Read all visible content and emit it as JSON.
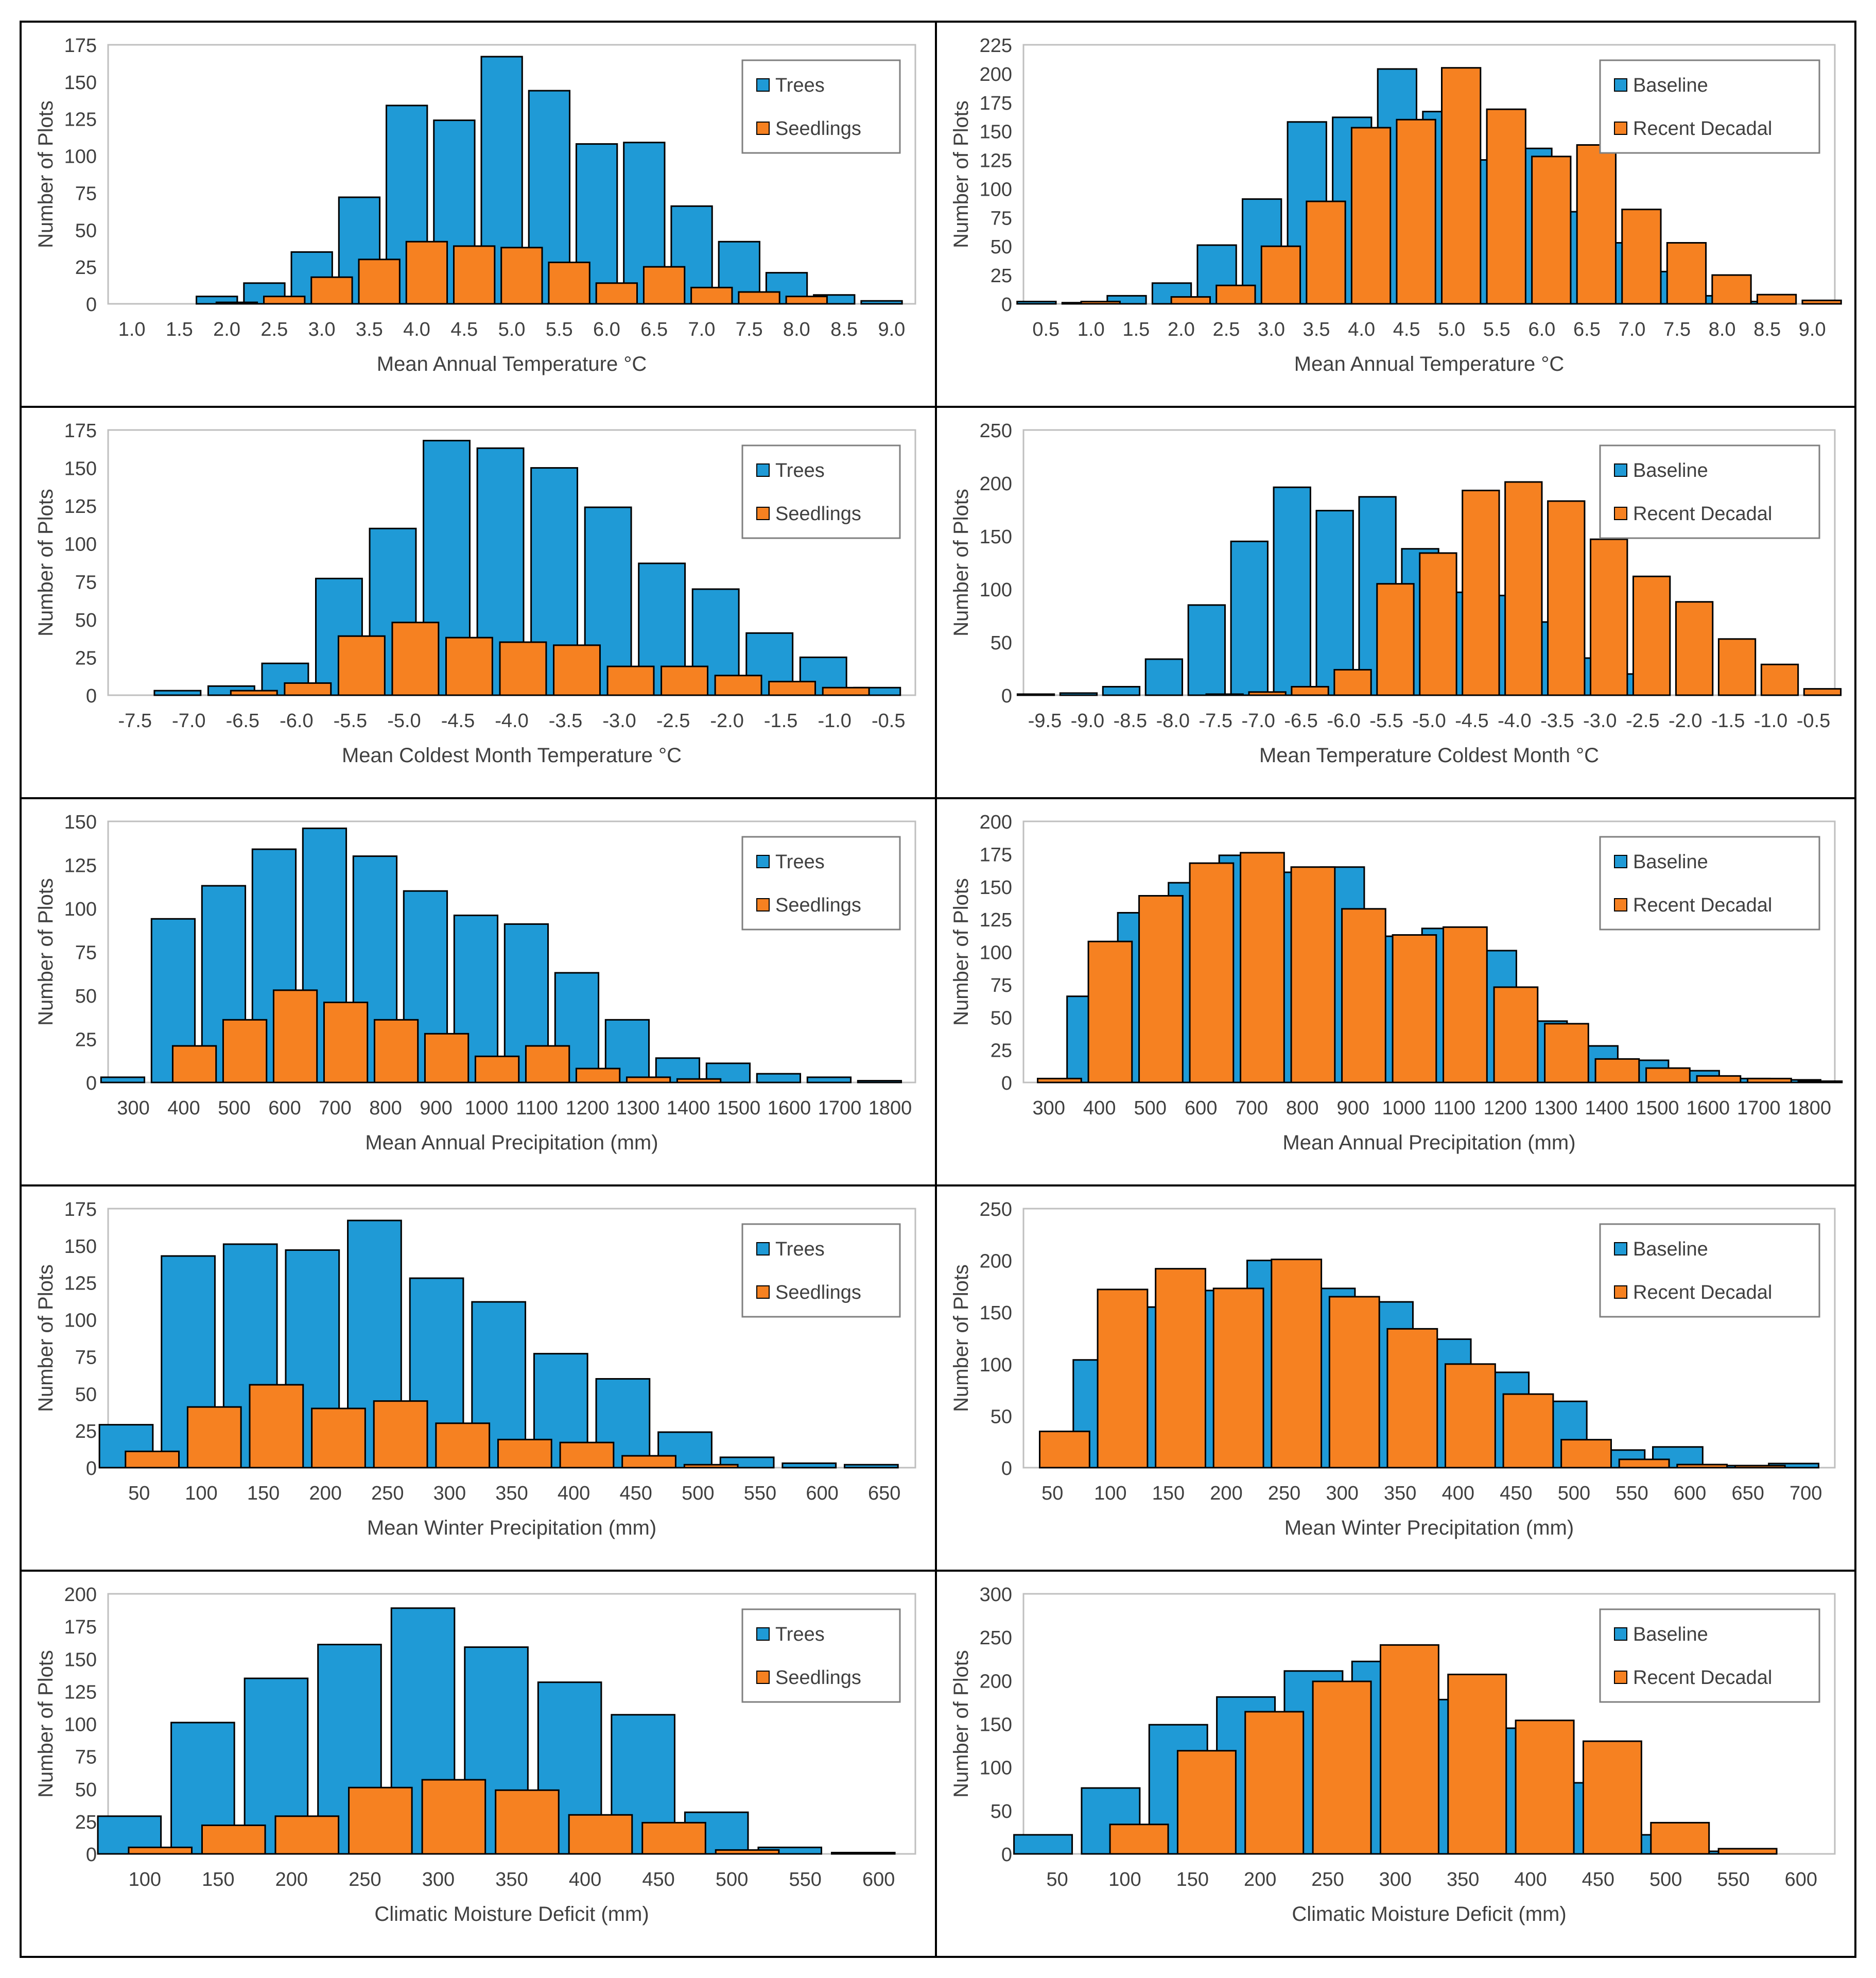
{
  "y_axis_label": "Number of Plots",
  "colors": {
    "trees": "#1f9ad6",
    "seedlings": "#f68121",
    "baseline": "#1f9ad6",
    "recent": "#f68121",
    "border": "#000000",
    "grid": "#d9d9d9",
    "text": "#404040"
  },
  "chart_data": [
    {
      "id": "A1",
      "type": "bar",
      "overlap": "offset",
      "xlabel": "Mean Annual Temperature °C",
      "ylim": [
        0,
        175
      ],
      "ystep": 25,
      "legend": "top-right",
      "categories": [
        "1.0",
        "1.5",
        "2.0",
        "2.5",
        "3.0",
        "3.5",
        "4.0",
        "4.5",
        "5.0",
        "5.5",
        "6.0",
        "6.5",
        "7.0",
        "7.5",
        "8.0",
        "8.5",
        "9.0"
      ],
      "series": [
        {
          "name": "Trees",
          "color": "trees",
          "values": [
            0,
            0,
            5,
            14,
            35,
            72,
            134,
            124,
            167,
            144,
            108,
            109,
            66,
            42,
            21,
            6,
            2
          ]
        },
        {
          "name": "Seedlings",
          "color": "seedlings",
          "values": [
            0,
            0,
            1,
            5,
            18,
            30,
            42,
            39,
            38,
            28,
            14,
            25,
            11,
            8,
            5,
            0,
            0
          ]
        }
      ]
    },
    {
      "id": "B1",
      "type": "bar",
      "overlap": "offset",
      "xlabel": "Mean Annual Temperature °C",
      "ylim": [
        0,
        225
      ],
      "ystep": 25,
      "legend": "top-right",
      "categories": [
        "0.5",
        "1.0",
        "1.5",
        "2.0",
        "2.5",
        "3.0",
        "3.5",
        "4.0",
        "4.5",
        "5.0",
        "5.5",
        "6.0",
        "6.5",
        "7.0",
        "7.5",
        "8.0",
        "8.5",
        "9.0"
      ],
      "series": [
        {
          "name": "Baseline",
          "color": "baseline",
          "values": [
            2,
            1,
            7,
            18,
            51,
            91,
            158,
            162,
            204,
            167,
            125,
            135,
            80,
            53,
            28,
            7,
            2,
            0
          ]
        },
        {
          "name": "Recent Decadal",
          "color": "recent",
          "values": [
            0,
            2,
            0,
            6,
            16,
            50,
            89,
            153,
            160,
            205,
            169,
            128,
            138,
            82,
            53,
            25,
            8,
            3
          ]
        }
      ]
    },
    {
      "id": "A2",
      "type": "bar",
      "overlap": "offset",
      "xlabel": "Mean Coldest Month Temperature °C",
      "ylim": [
        0,
        175
      ],
      "ystep": 25,
      "legend": "top-right",
      "categories": [
        "-7.5",
        "-7.0",
        "-6.5",
        "-6.0",
        "-5.5",
        "-5.0",
        "-4.5",
        "-4.0",
        "-3.5",
        "-3.0",
        "-2.5",
        "-2.0",
        "-1.5",
        "-1.0",
        "-0.5"
      ],
      "series": [
        {
          "name": "Trees",
          "color": "trees",
          "values": [
            0,
            3,
            6,
            21,
            77,
            110,
            168,
            163,
            150,
            124,
            87,
            70,
            41,
            25,
            5
          ]
        },
        {
          "name": "Seedlings",
          "color": "seedlings",
          "values": [
            0,
            0,
            3,
            8,
            39,
            48,
            38,
            35,
            33,
            19,
            19,
            13,
            9,
            5,
            0
          ]
        }
      ]
    },
    {
      "id": "B2",
      "type": "bar",
      "overlap": "offset",
      "xlabel": "Mean Temperature Coldest Month °C",
      "ylim": [
        0,
        250
      ],
      "ystep": 50,
      "legend": "top-right",
      "categories": [
        "-9.5",
        "-9.0",
        "-8.5",
        "-8.0",
        "-7.5",
        "-7.0",
        "-6.5",
        "-6.0",
        "-5.5",
        "-5.0",
        "-4.5",
        "-4.0",
        "-3.5",
        "-3.0",
        "-2.5",
        "-2.0",
        "-1.5",
        "-1.0",
        "-0.5"
      ],
      "series": [
        {
          "name": "Baseline",
          "color": "baseline",
          "values": [
            1,
            2,
            8,
            34,
            85,
            145,
            196,
            174,
            187,
            138,
            97,
            94,
            69,
            35,
            20,
            0,
            0,
            0,
            0
          ]
        },
        {
          "name": "Recent Decadal",
          "color": "recent",
          "values": [
            0,
            0,
            0,
            0,
            1,
            3,
            8,
            24,
            105,
            134,
            193,
            201,
            183,
            147,
            112,
            88,
            53,
            29,
            6
          ]
        }
      ]
    },
    {
      "id": "A3",
      "type": "bar",
      "overlap": "offset",
      "xlabel": "Mean Annual Precipitation (mm)",
      "ylim": [
        0,
        150
      ],
      "ystep": 25,
      "legend": "top-right",
      "categories": [
        "300",
        "400",
        "500",
        "600",
        "700",
        "800",
        "900",
        "1000",
        "1100",
        "1200",
        "1300",
        "1400",
        "1500",
        "1600",
        "1700",
        "1800"
      ],
      "series": [
        {
          "name": "Trees",
          "color": "trees",
          "values": [
            3,
            94,
            113,
            134,
            146,
            130,
            110,
            96,
            91,
            63,
            36,
            14,
            11,
            5,
            3,
            1
          ]
        },
        {
          "name": "Seedlings",
          "color": "seedlings",
          "values": [
            0,
            21,
            36,
            53,
            46,
            36,
            28,
            15,
            21,
            8,
            3,
            2,
            0,
            0,
            0,
            0
          ]
        }
      ]
    },
    {
      "id": "B3",
      "type": "bar",
      "overlap": "offset",
      "xlabel": "Mean Annual Precipitation (mm)",
      "ylim": [
        0,
        200
      ],
      "ystep": 25,
      "legend": "top-right",
      "categories": [
        "300",
        "400",
        "500",
        "600",
        "700",
        "800",
        "900",
        "1000",
        "1100",
        "1200",
        "1300",
        "1400",
        "1500",
        "1600",
        "1700",
        "1800"
      ],
      "series": [
        {
          "name": "Baseline",
          "color": "baseline",
          "values": [
            0,
            66,
            130,
            153,
            174,
            161,
            165,
            112,
            118,
            101,
            47,
            28,
            17,
            9,
            3,
            2
          ]
        },
        {
          "name": "Recent Decadal",
          "color": "recent",
          "values": [
            3,
            108,
            143,
            168,
            176,
            165,
            133,
            113,
            119,
            73,
            45,
            18,
            11,
            5,
            3,
            1
          ]
        }
      ]
    },
    {
      "id": "A4",
      "type": "bar",
      "overlap": "offset",
      "xlabel": "Mean Winter Precipitation (mm)",
      "ylim": [
        0,
        175
      ],
      "ystep": 25,
      "legend": "top-right",
      "categories": [
        "50",
        "100",
        "150",
        "200",
        "250",
        "300",
        "350",
        "400",
        "450",
        "500",
        "550",
        "600",
        "650"
      ],
      "series": [
        {
          "name": "Trees",
          "color": "trees",
          "values": [
            29,
            143,
            151,
            147,
            167,
            128,
            112,
            77,
            60,
            24,
            7,
            3,
            2
          ]
        },
        {
          "name": "Seedlings",
          "color": "seedlings",
          "values": [
            11,
            41,
            56,
            40,
            45,
            30,
            19,
            17,
            8,
            2,
            0,
            0,
            0
          ]
        }
      ]
    },
    {
      "id": "B4",
      "type": "bar",
      "overlap": "offset",
      "xlabel": "Mean Winter Precipitation (mm)",
      "ylim": [
        0,
        250
      ],
      "ystep": 50,
      "legend": "top-right",
      "categories": [
        "50",
        "100",
        "150",
        "200",
        "250",
        "300",
        "350",
        "400",
        "450",
        "500",
        "550",
        "600",
        "650",
        "700"
      ],
      "series": [
        {
          "name": "Baseline",
          "color": "baseline",
          "values": [
            0,
            104,
            155,
            171,
            200,
            173,
            160,
            124,
            92,
            64,
            17,
            20,
            2,
            4
          ]
        },
        {
          "name": "Recent Decadal",
          "color": "recent",
          "values": [
            35,
            172,
            192,
            173,
            201,
            165,
            134,
            100,
            71,
            27,
            8,
            3,
            2,
            0
          ]
        }
      ]
    },
    {
      "id": "A5",
      "type": "bar",
      "overlap": "offset",
      "xlabel": "Climatic Moisture Deficit (mm)",
      "ylim": [
        0,
        200
      ],
      "ystep": 25,
      "legend": "top-right",
      "categories": [
        "100",
        "150",
        "200",
        "250",
        "300",
        "350",
        "400",
        "450",
        "500",
        "550",
        "600"
      ],
      "series": [
        {
          "name": "Trees",
          "color": "trees",
          "values": [
            29,
            101,
            135,
            161,
            189,
            159,
            132,
            107,
            32,
            5,
            1
          ]
        },
        {
          "name": "Seedlings",
          "color": "seedlings",
          "values": [
            5,
            22,
            29,
            51,
            57,
            49,
            30,
            24,
            3,
            0,
            0
          ]
        }
      ]
    },
    {
      "id": "B5",
      "type": "bar",
      "overlap": "offset",
      "xlabel": "Climatic Moisture Deficit (mm)",
      "ylim": [
        0,
        300
      ],
      "ystep": 50,
      "legend": "top-right",
      "categories": [
        "50",
        "100",
        "150",
        "200",
        "250",
        "300",
        "350",
        "400",
        "450",
        "500",
        "550",
        "600"
      ],
      "series": [
        {
          "name": "Baseline",
          "color": "baseline",
          "values": [
            22,
            76,
            149,
            181,
            211,
            222,
            178,
            145,
            82,
            22,
            3,
            0
          ]
        },
        {
          "name": "Recent Decadal",
          "color": "recent",
          "values": [
            0,
            34,
            119,
            164,
            199,
            241,
            207,
            154,
            130,
            36,
            6,
            0
          ]
        }
      ]
    }
  ]
}
